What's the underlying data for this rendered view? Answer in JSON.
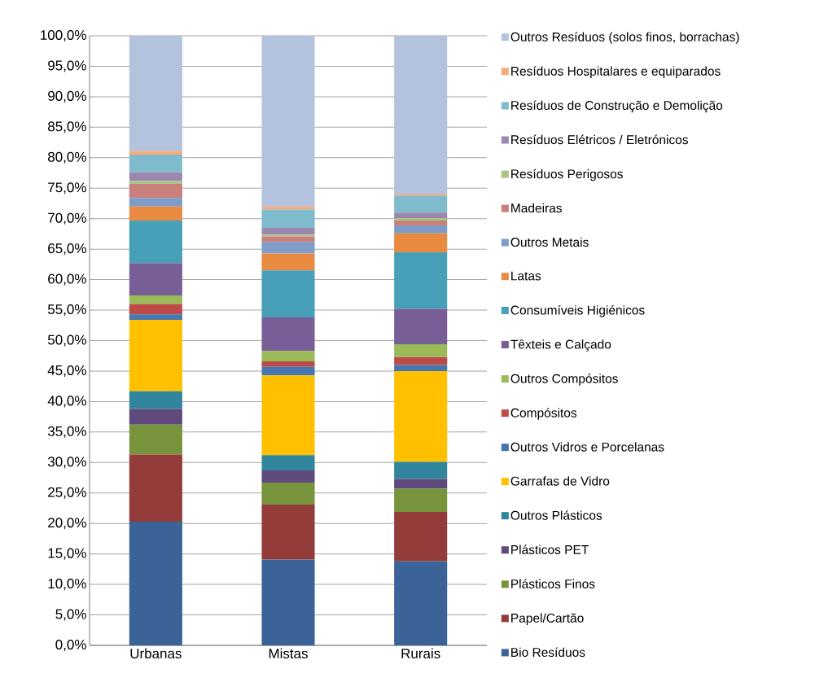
{
  "chart_data": {
    "type": "bar",
    "stacked": true,
    "grid": "y",
    "legend": "right",
    "categories": [
      "Urbanas",
      "Mistas",
      "Rurais"
    ],
    "ylim": [
      0,
      100
    ],
    "yticks": [
      {
        "value": 0,
        "label": "0,0%"
      },
      {
        "value": 5,
        "label": "5,0%"
      },
      {
        "value": 10,
        "label": "10,0%"
      },
      {
        "value": 15,
        "label": "15,0%"
      },
      {
        "value": 20,
        "label": "20,0%"
      },
      {
        "value": 25,
        "label": "25,0%"
      },
      {
        "value": 30,
        "label": "30,0%"
      },
      {
        "value": 35,
        "label": "35,0%"
      },
      {
        "value": 40,
        "label": "40,0%"
      },
      {
        "value": 45,
        "label": "45,0%"
      },
      {
        "value": 50,
        "label": "50,0%"
      },
      {
        "value": 55,
        "label": "55,0%"
      },
      {
        "value": 60,
        "label": "60,0%"
      },
      {
        "value": 65,
        "label": "65,0%"
      },
      {
        "value": 70,
        "label": "70,0%"
      },
      {
        "value": 75,
        "label": "75,0%"
      },
      {
        "value": 80,
        "label": "80,0%"
      },
      {
        "value": 85,
        "label": "85,0%"
      },
      {
        "value": 90,
        "label": "90,0%"
      },
      {
        "value": 95,
        "label": "95,0%"
      },
      {
        "value": 100,
        "label": "100,0%"
      }
    ],
    "series": [
      {
        "name": "Bio Resíduos",
        "color": "#3b6397",
        "values": [
          20.3,
          14.1,
          13.8
        ]
      },
      {
        "name": "Papel/Cartão",
        "color": "#943c3a",
        "values": [
          11.0,
          9.0,
          8.1
        ]
      },
      {
        "name": "Plásticos Finos",
        "color": "#77933c",
        "values": [
          4.9,
          3.6,
          3.8
        ]
      },
      {
        "name": "Plásticos PET",
        "color": "#604a7b",
        "values": [
          2.6,
          2.0,
          1.6
        ]
      },
      {
        "name": "Outros Plásticos",
        "color": "#31859c",
        "values": [
          2.9,
          2.5,
          2.8
        ]
      },
      {
        "name": "Garrafas de Vidro",
        "color": "#ffc000",
        "values": [
          11.7,
          13.1,
          14.9
        ]
      },
      {
        "name": "Outros Vidros e Porcelanas",
        "color": "#4676b0",
        "values": [
          0.9,
          1.4,
          1.0
        ]
      },
      {
        "name": "Compósitos",
        "color": "#be4b48",
        "values": [
          1.7,
          0.9,
          1.3
        ]
      },
      {
        "name": "Outros Compósitos",
        "color": "#9bbb59",
        "values": [
          1.4,
          1.7,
          2.1
        ]
      },
      {
        "name": "Têxteis e Calçado",
        "color": "#775e96",
        "values": [
          5.3,
          5.5,
          5.8
        ]
      },
      {
        "name": "Consumíveis Higiénicos",
        "color": "#47a0b7",
        "values": [
          7.0,
          7.7,
          9.3
        ]
      },
      {
        "name": "Latas",
        "color": "#e88b40",
        "values": [
          2.3,
          2.8,
          3.1
        ]
      },
      {
        "name": "Outros Metais",
        "color": "#7f9cc8",
        "values": [
          1.4,
          1.9,
          1.3
        ]
      },
      {
        "name": "Madeiras",
        "color": "#c9807d",
        "values": [
          2.3,
          0.9,
          0.8
        ]
      },
      {
        "name": "Resíduos Perigosos",
        "color": "#a9c485",
        "values": [
          0.5,
          0.3,
          0.4
        ]
      },
      {
        "name": "Resíduos Elétricos / Eletrónicos",
        "color": "#9c87b0",
        "values": [
          1.4,
          1.1,
          0.9
        ]
      },
      {
        "name": "Resíduos de Construção e Demolição",
        "color": "#7fbbcc",
        "values": [
          2.9,
          3.0,
          2.8
        ]
      },
      {
        "name": "Resíduos Hospitalares e equiparados",
        "color": "#f5ab7e",
        "values": [
          0.6,
          0.5,
          0.3
        ]
      },
      {
        "name": "Outros Resíduos (solos finos, borrachas)",
        "color": "#b3c3dd",
        "values": [
          18.9,
          28.0,
          25.9
        ]
      }
    ]
  }
}
